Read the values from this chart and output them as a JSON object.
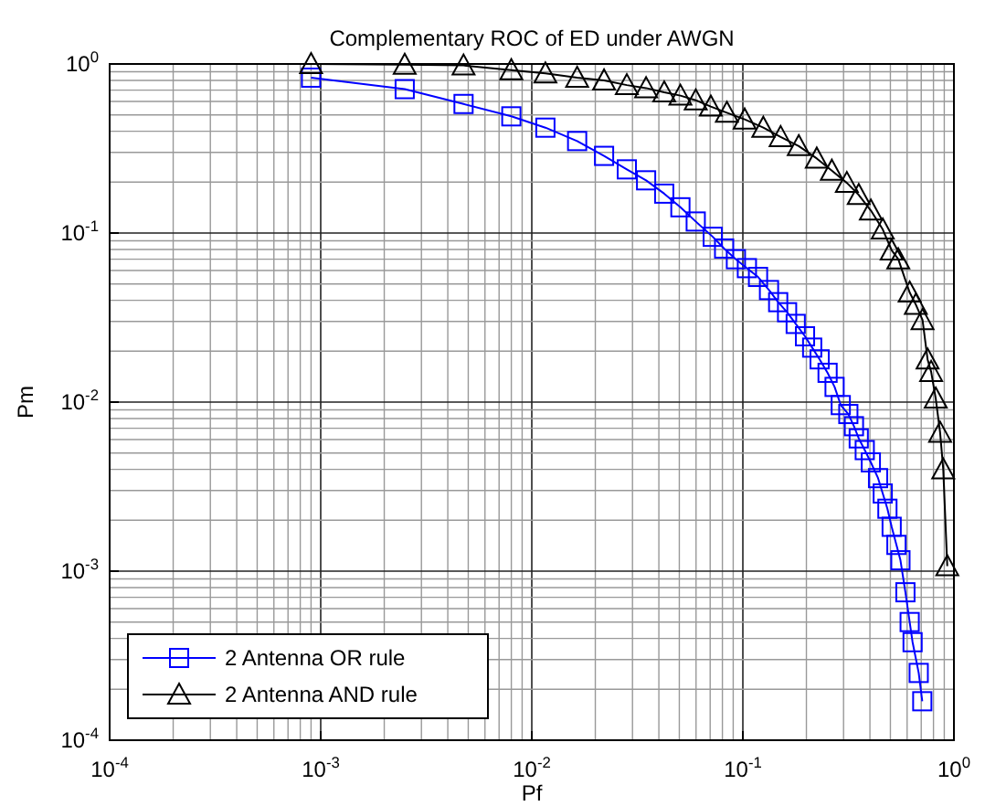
{
  "chart_data": {
    "type": "line",
    "title": "Complementary ROC of ED under AWGN",
    "xlabel": "Pf",
    "ylabel": "Pm",
    "log": "xy",
    "grid": true,
    "legend": "bottom left",
    "line_style": "solid",
    "xlim": [
      0.0001,
      1
    ],
    "ylim": [
      0.0001,
      1
    ],
    "xticks": [
      {
        "value": 0.0001,
        "label": "10$^{-4}$"
      },
      {
        "value": 0.001,
        "label": "10$^{-3}$"
      },
      {
        "value": 0.01,
        "label": "10$^{-2}$"
      },
      {
        "value": 0.1,
        "label": "10$^{-1}$"
      },
      {
        "value": 1,
        "label": "10$^{0}$"
      }
    ],
    "yticks": [
      {
        "value": 0.0001,
        "label": "10$^{-4}$"
      },
      {
        "value": 0.001,
        "label": "10$^{-3}$"
      },
      {
        "value": 0.01,
        "label": "10$^{-2}$"
      },
      {
        "value": 0.1,
        "label": "10$^{-1}$"
      },
      {
        "value": 1,
        "label": "10$^{0}$"
      }
    ],
    "series": [
      {
        "name": "2 Antenna OR rule",
        "color": "#0000ff",
        "marker": "square",
        "x": [
          0.0009,
          0.0025,
          0.00475,
          0.008,
          0.0116,
          0.0164,
          0.022,
          0.0282,
          0.0348,
          0.0424,
          0.0506,
          0.0598,
          0.072,
          0.0815,
          0.0927,
          0.1045,
          0.118,
          0.133,
          0.147,
          0.162,
          0.178,
          0.197,
          0.213,
          0.231,
          0.252,
          0.272,
          0.291,
          0.316,
          0.336,
          0.354,
          0.378,
          0.404,
          0.437,
          0.46,
          0.484,
          0.507,
          0.534,
          0.558,
          0.589,
          0.617,
          0.637,
          0.681,
          0.708
        ],
        "values": [
          0.83,
          0.71,
          0.58,
          0.49,
          0.42,
          0.35,
          0.286,
          0.238,
          0.205,
          0.171,
          0.142,
          0.117,
          0.095,
          0.081,
          0.07,
          0.062,
          0.055,
          0.046,
          0.039,
          0.034,
          0.029,
          0.0245,
          0.021,
          0.0179,
          0.0149,
          0.0123,
          0.0096,
          0.0085,
          0.0072,
          0.0061,
          0.0052,
          0.0044,
          0.00355,
          0.00288,
          0.00234,
          0.00183,
          0.00143,
          0.00116,
          0.00075,
          0.0005,
          0.00038,
          0.00025,
          0.00017
        ]
      },
      {
        "name": "2 Antenna AND rule",
        "color": "#000000",
        "marker": "triangle",
        "x": [
          0.0009,
          0.0025,
          0.00475,
          0.008,
          0.0116,
          0.0164,
          0.022,
          0.0282,
          0.0348,
          0.0424,
          0.0506,
          0.0598,
          0.0705,
          0.084,
          0.102,
          0.125,
          0.151,
          0.184,
          0.224,
          0.264,
          0.311,
          0.354,
          0.404,
          0.46,
          0.507,
          0.545,
          0.617,
          0.66,
          0.71,
          0.75,
          0.78,
          0.82,
          0.86,
          0.89,
          0.93
        ],
        "values": [
          1,
          0.99,
          0.98,
          0.92,
          0.88,
          0.83,
          0.8,
          0.75,
          0.72,
          0.68,
          0.65,
          0.61,
          0.56,
          0.515,
          0.47,
          0.42,
          0.37,
          0.327,
          0.276,
          0.234,
          0.198,
          0.168,
          0.136,
          0.105,
          0.079,
          0.07,
          0.0445,
          0.0377,
          0.0306,
          0.0179,
          0.0151,
          0.0105,
          0.0066,
          0.004,
          0.00107
        ]
      }
    ]
  }
}
